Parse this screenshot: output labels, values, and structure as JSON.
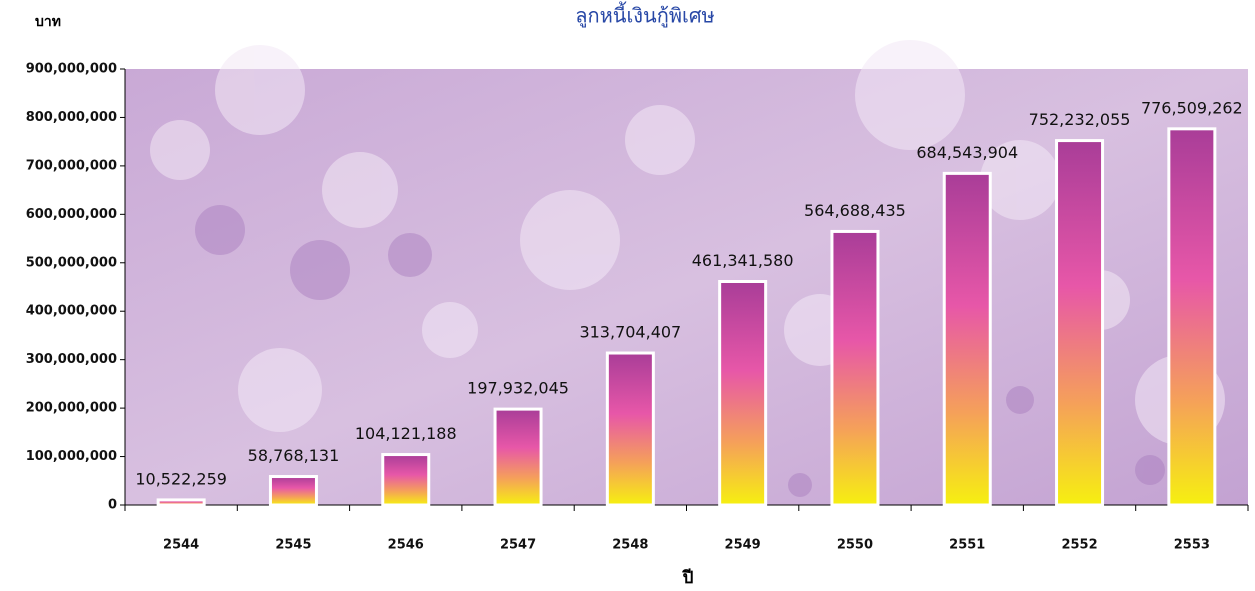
{
  "chart_data": {
    "type": "bar",
    "title": "ลูกหนี้เงินกู้พิเศษ",
    "y_label": "บาท",
    "x_label": "ปี",
    "categories": [
      "2544",
      "2545",
      "2546",
      "2547",
      "2548",
      "2549",
      "2550",
      "2551",
      "2552",
      "2553"
    ],
    "values": [
      10522259,
      58768131,
      104121188,
      197932045,
      313704407,
      461341580,
      564688435,
      684543904,
      752232055,
      776509262
    ],
    "value_labels": [
      "10,522,259",
      "58,768,131",
      "104,121,188",
      "197,932,045",
      "313,704,407",
      "461,341,580",
      "564,688,435",
      "684,543,904",
      "752,232,055",
      "776,509,262"
    ],
    "ylim": [
      0,
      900000000
    ],
    "yticks": [
      0,
      {
        "value": 100000000,
        "label": "100,000,000"
      },
      {
        "value": 200000000,
        "label": "200,000,000"
      },
      {
        "value": 300000000,
        "label": "300,000,000"
      },
      {
        "value": 400000000,
        "label": "400,000,000"
      },
      {
        "value": 500000000,
        "label": "500,000,000"
      },
      {
        "value": 600000000,
        "label": "600,000,000"
      },
      {
        "value": 700000000,
        "label": "700,000,000"
      },
      {
        "value": 800000000,
        "label": "800,000,000"
      },
      {
        "value": 900000000,
        "label": "900,000,000"
      }
    ]
  }
}
